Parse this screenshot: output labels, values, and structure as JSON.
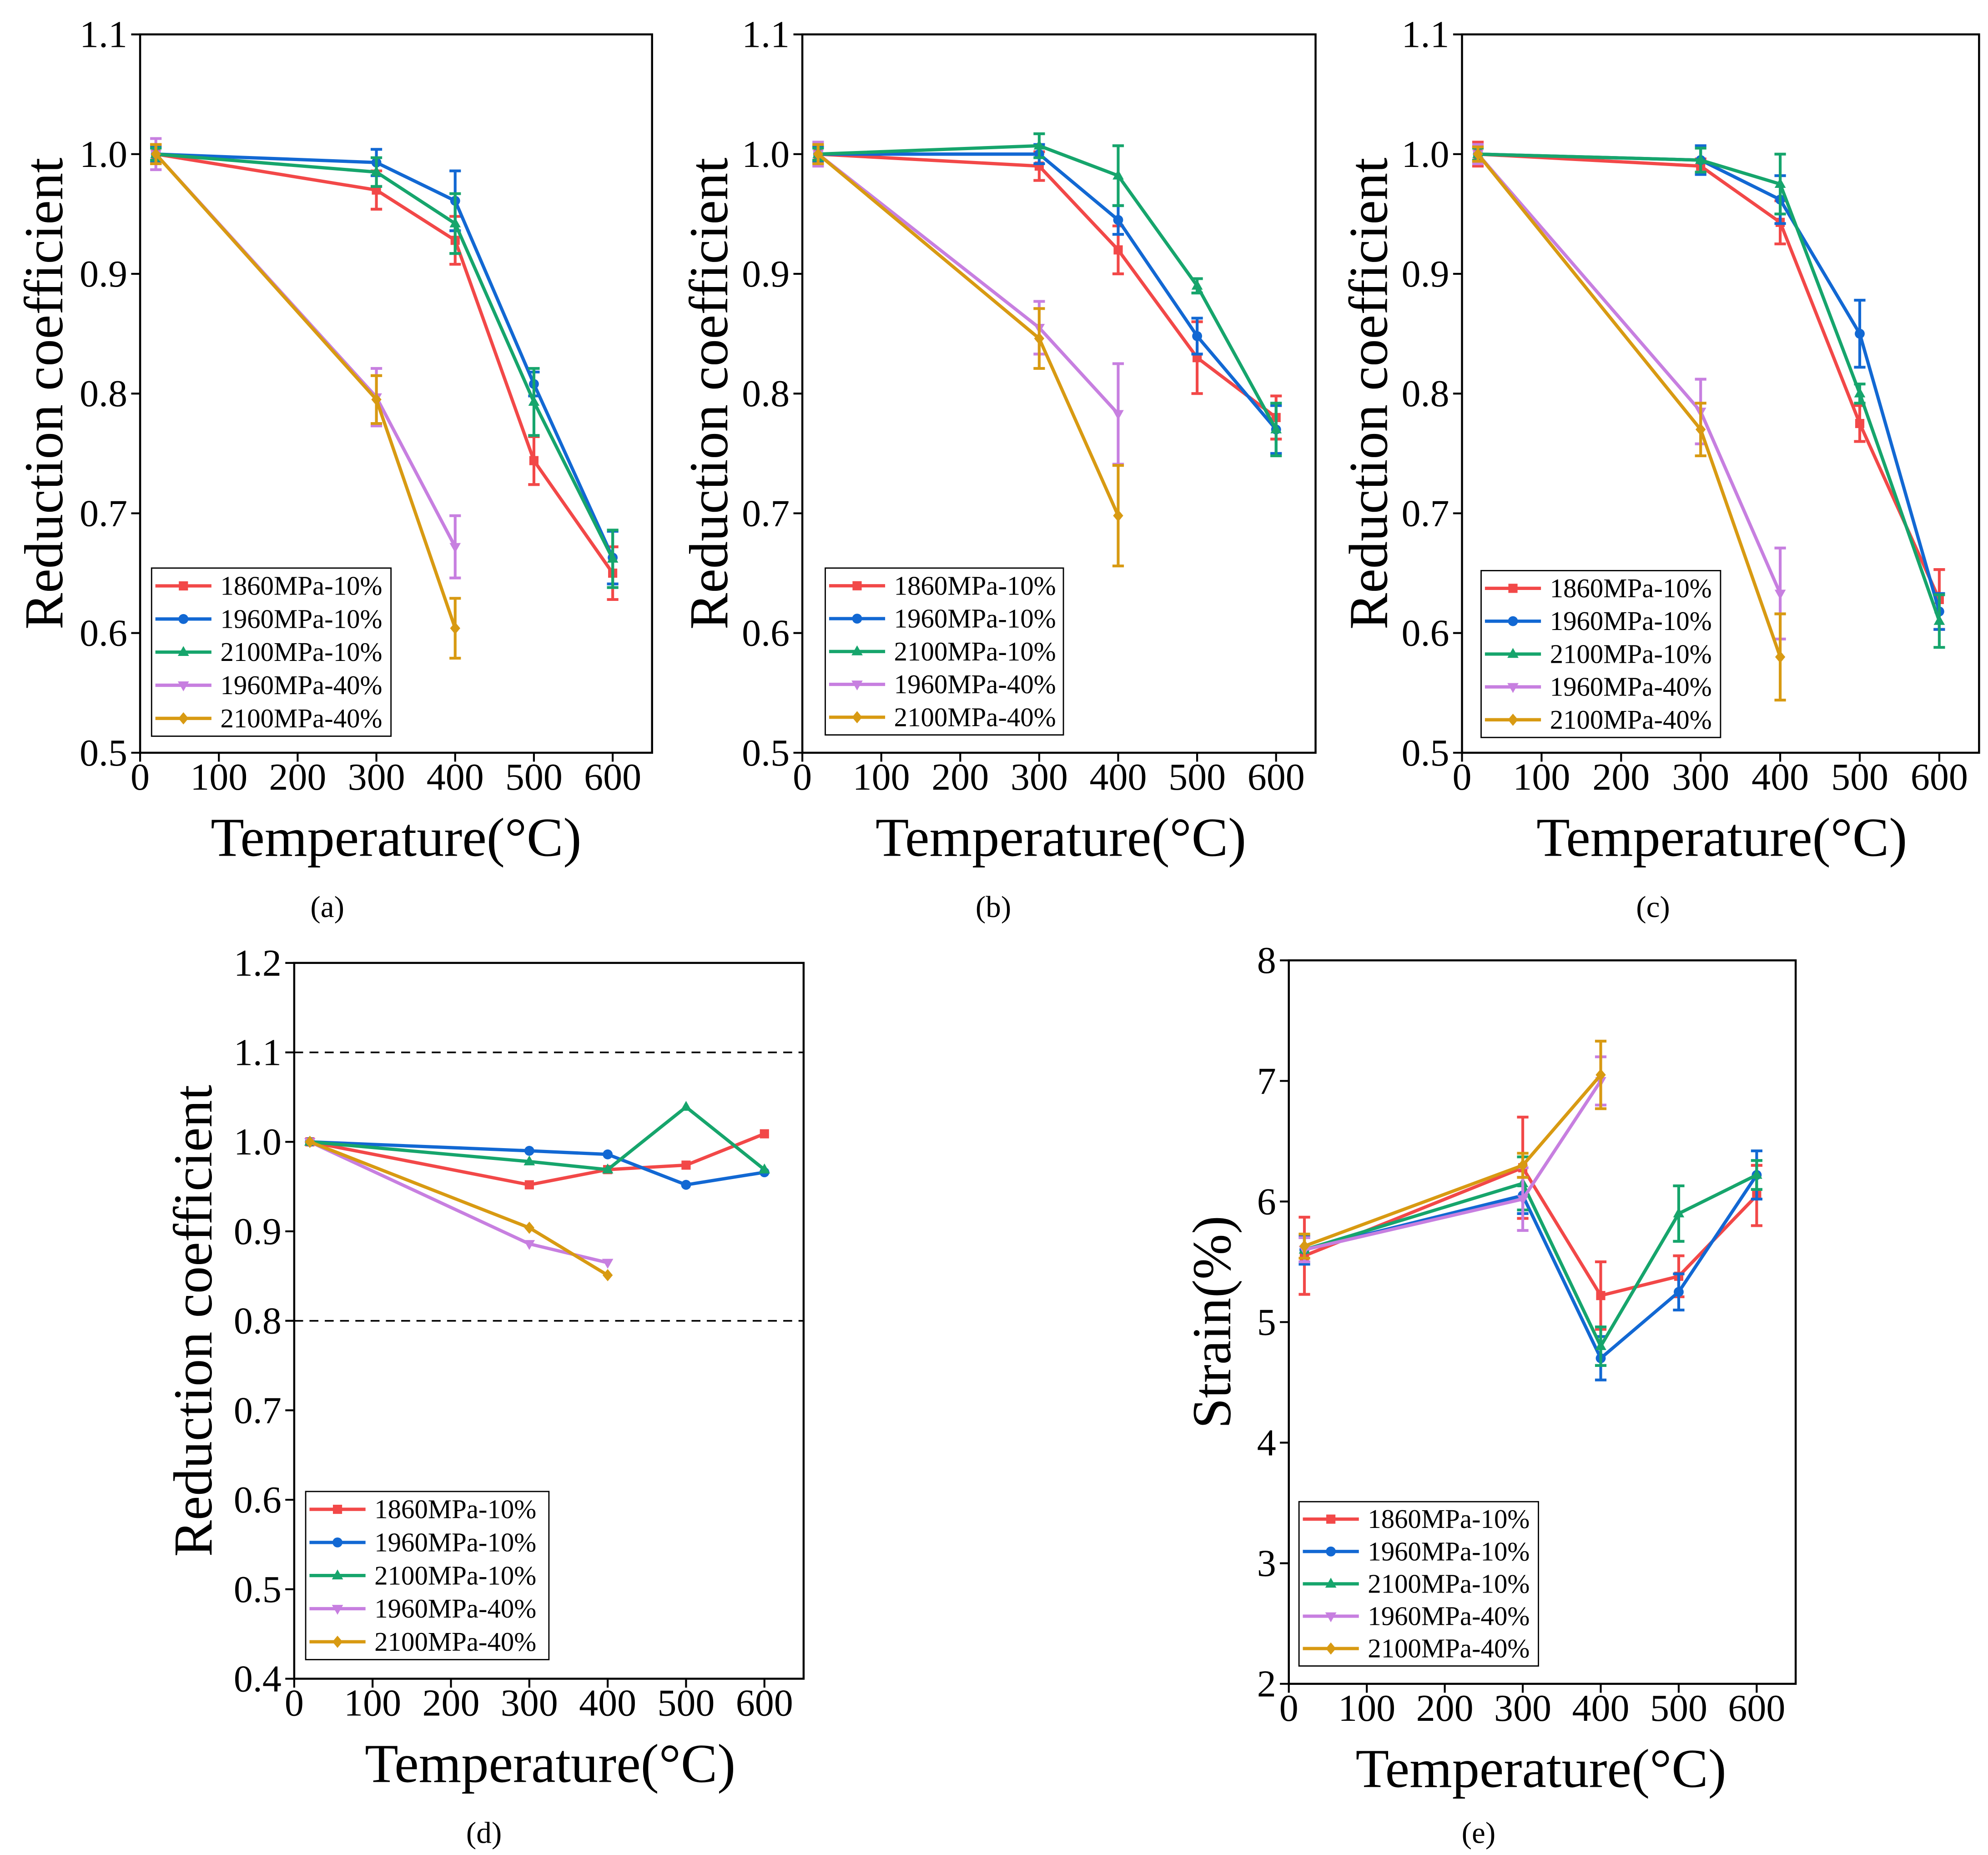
{
  "colors": {
    "background": "#ffffff",
    "axis": "#000000"
  },
  "chart_data": [
    {
      "panel_label": "(a)",
      "type": "line",
      "xlabel": "Temperature(°C)",
      "ylabel": "Reduction coefficient",
      "xlim": [
        0,
        650
      ],
      "ylim": [
        0.5,
        1.1
      ],
      "xticks": [
        0,
        100,
        200,
        300,
        400,
        500,
        600
      ],
      "xtick_labels": [
        "0",
        "100",
        "200",
        "300",
        "400",
        "500",
        "600"
      ],
      "yticks": [
        0.5,
        0.6,
        0.7,
        0.8,
        0.9,
        1.0,
        1.1
      ],
      "ytick_labels": [
        "0.5",
        "0.6",
        "0.7",
        "0.8",
        "0.9",
        "1.0",
        "1.1"
      ],
      "legend_position": "bottom-left",
      "series": [
        {
          "name": "1860MPa-10%",
          "color": "#f24848",
          "marker": "square",
          "x": [
            20,
            300,
            400,
            500,
            600
          ],
          "y": [
            1.0,
            0.97,
            0.928,
            0.744,
            0.65
          ],
          "err": [
            0.008,
            0.016,
            0.02,
            0.02,
            0.022
          ]
        },
        {
          "name": "1960MPa-10%",
          "color": "#1268d3",
          "marker": "circle",
          "x": [
            20,
            300,
            400,
            500,
            600
          ],
          "y": [
            1.0,
            0.993,
            0.961,
            0.808,
            0.663
          ],
          "err": [
            0.006,
            0.011,
            0.025,
            0.01,
            0.022
          ]
        },
        {
          "name": "2100MPa-10%",
          "color": "#16a56c",
          "marker": "triangle-up",
          "x": [
            20,
            300,
            400,
            500,
            600
          ],
          "y": [
            1.0,
            0.985,
            0.942,
            0.793,
            0.662
          ],
          "err": [
            0.005,
            0.012,
            0.025,
            0.028,
            0.024
          ]
        },
        {
          "name": "1960MPa-40%",
          "color": "#c77fe0",
          "marker": "triangle-down",
          "x": [
            20,
            300,
            400
          ],
          "y": [
            1.0,
            0.797,
            0.672
          ],
          "err": [
            0.013,
            0.024,
            0.026
          ]
        },
        {
          "name": "2100MPa-40%",
          "color": "#d89a12",
          "marker": "diamond",
          "x": [
            20,
            300,
            400
          ],
          "y": [
            1.0,
            0.795,
            0.604
          ],
          "err": [
            0.008,
            0.02,
            0.025
          ]
        }
      ]
    },
    {
      "panel_label": "(b)",
      "type": "line",
      "xlabel": "Temperature(°C)",
      "ylabel": "Reduction coefficient",
      "xlim": [
        0,
        650
      ],
      "ylim": [
        0.5,
        1.1
      ],
      "xticks": [
        0,
        100,
        200,
        300,
        400,
        500,
        600
      ],
      "xtick_labels": [
        "0",
        "100",
        "200",
        "300",
        "400",
        "500",
        "600"
      ],
      "yticks": [
        0.5,
        0.6,
        0.7,
        0.8,
        0.9,
        1.0,
        1.1
      ],
      "ytick_labels": [
        "0.5",
        "0.6",
        "0.7",
        "0.8",
        "0.9",
        "1.0",
        "1.1"
      ],
      "legend_position": "bottom-left",
      "series": [
        {
          "name": "1860MPa-10%",
          "color": "#f24848",
          "marker": "square",
          "x": [
            20,
            300,
            400,
            500,
            600
          ],
          "y": [
            1.0,
            0.99,
            0.92,
            0.83,
            0.78
          ],
          "err": [
            0.007,
            0.012,
            0.02,
            0.03,
            0.018
          ]
        },
        {
          "name": "1960MPa-10%",
          "color": "#1268d3",
          "marker": "circle",
          "x": [
            20,
            300,
            400,
            500,
            600
          ],
          "y": [
            1.0,
            1.0,
            0.945,
            0.848,
            0.77
          ],
          "err": [
            0.006,
            0.008,
            0.012,
            0.015,
            0.02
          ]
        },
        {
          "name": "2100MPa-10%",
          "color": "#16a56c",
          "marker": "triangle-up",
          "x": [
            20,
            300,
            400,
            500,
            600
          ],
          "y": [
            1.0,
            1.007,
            0.982,
            0.89,
            0.77
          ],
          "err": [
            0.005,
            0.01,
            0.025,
            0.006,
            0.022
          ]
        },
        {
          "name": "1960MPa-40%",
          "color": "#c77fe0",
          "marker": "triangle-down",
          "x": [
            20,
            300,
            400
          ],
          "y": [
            1.0,
            0.855,
            0.783
          ],
          "err": [
            0.01,
            0.022,
            0.042
          ]
        },
        {
          "name": "2100MPa-40%",
          "color": "#d89a12",
          "marker": "diamond",
          "x": [
            20,
            300,
            400
          ],
          "y": [
            1.0,
            0.846,
            0.698
          ],
          "err": [
            0.008,
            0.025,
            0.042
          ]
        }
      ]
    },
    {
      "panel_label": "(c)",
      "type": "line",
      "xlabel": "Temperature(°C)",
      "ylabel": "Reduction coefficient",
      "xlim": [
        0,
        650
      ],
      "ylim": [
        0.5,
        1.1
      ],
      "xticks": [
        0,
        100,
        200,
        300,
        400,
        500,
        600
      ],
      "xtick_labels": [
        "0",
        "100",
        "200",
        "300",
        "400",
        "500",
        "600"
      ],
      "yticks": [
        0.5,
        0.6,
        0.7,
        0.8,
        0.9,
        1.0,
        1.1
      ],
      "ytick_labels": [
        "0.5",
        "0.6",
        "0.7",
        "0.8",
        "0.9",
        "1.0",
        "1.1"
      ],
      "legend_position": "bottom-left",
      "series": [
        {
          "name": "1860MPa-10%",
          "color": "#f24848",
          "marker": "square",
          "x": [
            20,
            300,
            400,
            500,
            600
          ],
          "y": [
            1.0,
            0.99,
            0.943,
            0.775,
            0.628
          ],
          "err": [
            0.01,
            0.006,
            0.018,
            0.015,
            0.025
          ]
        },
        {
          "name": "1960MPa-10%",
          "color": "#1268d3",
          "marker": "circle",
          "x": [
            20,
            300,
            400,
            500,
            600
          ],
          "y": [
            1.0,
            0.995,
            0.962,
            0.85,
            0.618
          ],
          "err": [
            0.006,
            0.012,
            0.02,
            0.028,
            0.015
          ]
        },
        {
          "name": "2100MPa-10%",
          "color": "#16a56c",
          "marker": "triangle-up",
          "x": [
            20,
            300,
            400,
            500,
            600
          ],
          "y": [
            1.0,
            0.995,
            0.975,
            0.8,
            0.61
          ],
          "err": [
            0.005,
            0.01,
            0.025,
            0.008,
            0.022
          ]
        },
        {
          "name": "1960MPa-40%",
          "color": "#c77fe0",
          "marker": "triangle-down",
          "x": [
            20,
            300,
            400
          ],
          "y": [
            1.0,
            0.785,
            0.633
          ],
          "err": [
            0.008,
            0.027,
            0.038
          ]
        },
        {
          "name": "2100MPa-40%",
          "color": "#d89a12",
          "marker": "diamond",
          "x": [
            20,
            300,
            400
          ],
          "y": [
            1.0,
            0.77,
            0.58
          ],
          "err": [
            0.006,
            0.022,
            0.036
          ]
        }
      ]
    },
    {
      "panel_label": "(d)",
      "type": "line",
      "xlabel": "Temperature(°C)",
      "ylabel": "Reduction coefficient",
      "xlim": [
        0,
        650
      ],
      "ylim": [
        0.4,
        1.2
      ],
      "xticks": [
        0,
        100,
        200,
        300,
        400,
        500,
        600
      ],
      "xtick_labels": [
        "0",
        "100",
        "200",
        "300",
        "400",
        "500",
        "600"
      ],
      "yticks": [
        0.4,
        0.5,
        0.6,
        0.7,
        0.8,
        0.9,
        1.0,
        1.1,
        1.2
      ],
      "ytick_labels": [
        "0.4",
        "0.5",
        "0.6",
        "0.7",
        "0.8",
        "0.9",
        "1.0",
        "1.1",
        "1.2"
      ],
      "reference_lines": [
        1.1,
        0.8
      ],
      "legend_position": "bottom-left",
      "series": [
        {
          "name": "1860MPa-10%",
          "color": "#f24848",
          "marker": "square",
          "x": [
            20,
            300,
            400,
            500,
            600
          ],
          "y": [
            1.0,
            0.952,
            0.969,
            0.974,
            1.009
          ]
        },
        {
          "name": "1960MPa-10%",
          "color": "#1268d3",
          "marker": "circle",
          "x": [
            20,
            300,
            400,
            500,
            600
          ],
          "y": [
            1.0,
            0.99,
            0.986,
            0.952,
            0.966
          ]
        },
        {
          "name": "2100MPa-10%",
          "color": "#16a56c",
          "marker": "triangle-up",
          "x": [
            20,
            300,
            400,
            500,
            600
          ],
          "y": [
            1.0,
            0.978,
            0.969,
            1.039,
            0.969
          ]
        },
        {
          "name": "1960MPa-40%",
          "color": "#c77fe0",
          "marker": "triangle-down",
          "x": [
            20,
            300,
            400
          ],
          "y": [
            1.0,
            0.886,
            0.865
          ]
        },
        {
          "name": "2100MPa-40%",
          "color": "#d89a12",
          "marker": "diamond",
          "x": [
            20,
            300,
            400
          ],
          "y": [
            1.0,
            0.904,
            0.851
          ]
        }
      ]
    },
    {
      "panel_label": "(e)",
      "type": "line",
      "xlabel": "Temperature(°C)",
      "ylabel": "Strain(%)",
      "xlim": [
        0,
        650
      ],
      "ylim": [
        2,
        8
      ],
      "xticks": [
        0,
        100,
        200,
        300,
        400,
        500,
        600
      ],
      "xtick_labels": [
        "0",
        "100",
        "200",
        "300",
        "400",
        "500",
        "600"
      ],
      "yticks": [
        2,
        3,
        4,
        5,
        6,
        7,
        8
      ],
      "ytick_labels": [
        "2",
        "3",
        "4",
        "5",
        "6",
        "7",
        "8"
      ],
      "legend_position": "bottom-left",
      "series": [
        {
          "name": "1860MPa-10%",
          "color": "#f24848",
          "marker": "square",
          "x": [
            20,
            300,
            400,
            500,
            600
          ],
          "y": [
            5.55,
            6.28,
            5.22,
            5.38,
            6.05
          ],
          "err": [
            0.32,
            0.42,
            0.28,
            0.17,
            0.25
          ]
        },
        {
          "name": "1960MPa-10%",
          "color": "#1268d3",
          "marker": "circle",
          "x": [
            20,
            300,
            400,
            500,
            600
          ],
          "y": [
            5.6,
            6.05,
            4.7,
            5.25,
            6.22
          ],
          "err": [
            0.12,
            0.15,
            0.18,
            0.15,
            0.2
          ]
        },
        {
          "name": "2100MPa-10%",
          "color": "#16a56c",
          "marker": "triangle-up",
          "x": [
            20,
            300,
            400,
            500,
            600
          ],
          "y": [
            5.6,
            6.15,
            4.8,
            5.9,
            6.22
          ],
          "err": [
            0.1,
            0.22,
            0.16,
            0.23,
            0.12
          ]
        },
        {
          "name": "1960MPa-40%",
          "color": "#c77fe0",
          "marker": "triangle-down",
          "x": [
            20,
            300,
            400
          ],
          "y": [
            5.6,
            6.02,
            7.0
          ],
          "err": [
            0.1,
            0.26,
            0.2
          ]
        },
        {
          "name": "2100MPa-40%",
          "color": "#d89a12",
          "marker": "diamond",
          "x": [
            20,
            300,
            400
          ],
          "y": [
            5.63,
            6.3,
            7.05
          ],
          "err": [
            0.1,
            0.1,
            0.28
          ]
        }
      ]
    }
  ]
}
